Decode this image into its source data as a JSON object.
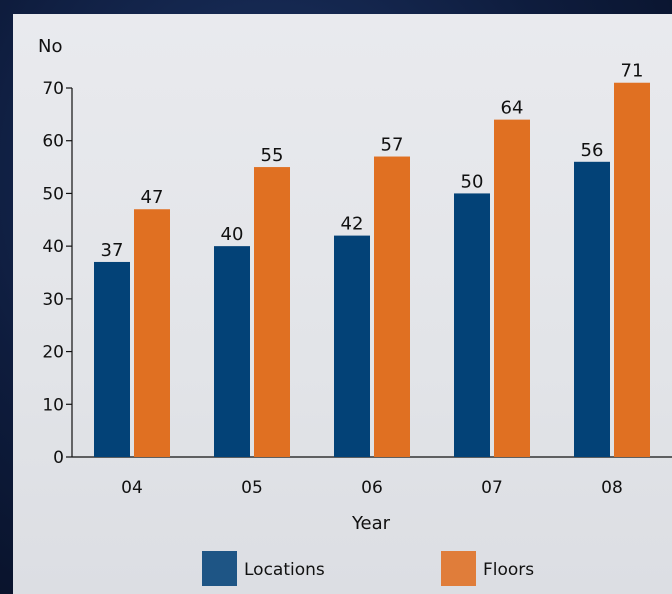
{
  "chart_data": {
    "type": "bar",
    "ylabel": "No",
    "xlabel": "Year",
    "categories": [
      "04",
      "05",
      "06",
      "07",
      "08"
    ],
    "series": [
      {
        "name": "Locations",
        "color": "#034277",
        "values": [
          37,
          40,
          42,
          50,
          56
        ]
      },
      {
        "name": "Floors",
        "color": "#e07022",
        "values": [
          47,
          55,
          57,
          64,
          71
        ]
      }
    ],
    "ylim": [
      0,
      70
    ],
    "yticks": [
      0,
      10,
      20,
      30,
      40,
      50,
      60,
      70
    ],
    "legend_position": "bottom",
    "grid": false
  }
}
